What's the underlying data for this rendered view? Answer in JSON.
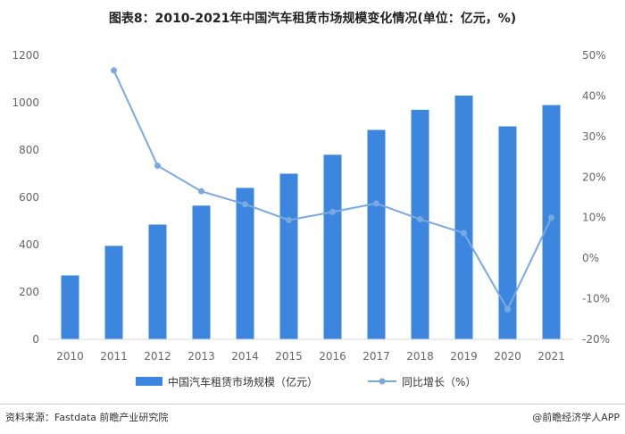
{
  "title": "图表8：2010-2021年中国汽车租赁市场规模变化情况(单位：亿元，%)",
  "footer": {
    "source": "资料来源：Fastdata 前瞻产业研究院",
    "credit": "@前瞻经济学人APP"
  },
  "colors": {
    "bar": "#3d86e0",
    "line": "#7aa9df"
  },
  "chart_data": {
    "type": "bar+line",
    "categories": [
      "2010",
      "2011",
      "2012",
      "2013",
      "2014",
      "2015",
      "2016",
      "2017",
      "2018",
      "2019",
      "2020",
      "2021"
    ],
    "series": [
      {
        "name": "中国汽车租赁市场规模（亿元）",
        "type": "bar",
        "axis": "left",
        "values": [
          270,
          395,
          485,
          565,
          640,
          700,
          780,
          885,
          970,
          1030,
          900,
          990
        ]
      },
      {
        "name": "同比增长（%）",
        "type": "line",
        "axis": "right",
        "values": [
          null,
          46.3,
          22.8,
          16.5,
          13.3,
          9.4,
          11.4,
          13.5,
          9.6,
          6.2,
          -12.6,
          10.0
        ]
      }
    ],
    "left_axis": {
      "min": 0,
      "max": 1200,
      "step": 200,
      "tick_labels": [
        "0",
        "200",
        "400",
        "600",
        "800",
        "1000",
        "1200"
      ]
    },
    "right_axis": {
      "min": -20,
      "max": 50,
      "step": 10,
      "tick_labels": [
        "-20%",
        "-10%",
        "0%",
        "10%",
        "20%",
        "30%",
        "40%",
        "50%"
      ]
    },
    "legend": [
      "中国汽车租赁市场规模（亿元）",
      "同比增长（%）"
    ],
    "legend_position": "bottom",
    "grid": false
  }
}
